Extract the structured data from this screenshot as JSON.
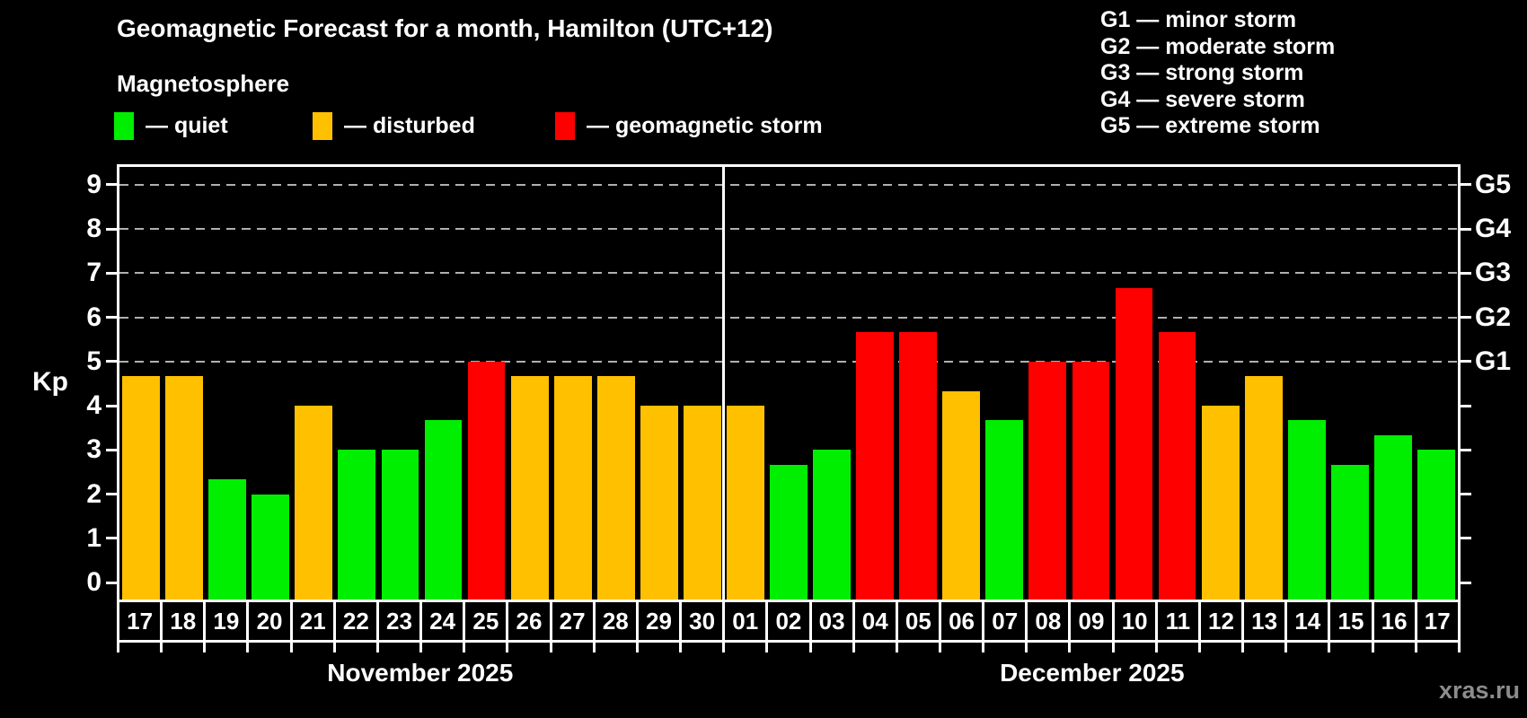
{
  "header": {
    "title": "Geomagnetic Forecast for a month, Hamilton (UTC+12)",
    "subtitle": "Magnetosphere",
    "legend": [
      {
        "status": "quiet",
        "label": "— quiet"
      },
      {
        "status": "disturbed",
        "label": "— disturbed"
      },
      {
        "status": "storm",
        "label": "— geomagnetic storm"
      }
    ],
    "storm_scale_legend": [
      "G1 — minor storm",
      "G2 — moderate storm",
      "G3 — strong storm",
      "G4 — severe storm",
      "G5 — extreme storm"
    ]
  },
  "watermark": "xras.ru",
  "colors": {
    "quiet": "#00ee00",
    "disturbed": "#ffc000",
    "storm": "#ff0000",
    "grid": "#b0b0b0",
    "axis": "#ffffff",
    "watermark": "#8c8c8c"
  },
  "chart_data": {
    "type": "bar",
    "title": "Geomagnetic Forecast for a month, Hamilton (UTC+12)",
    "subtitle": "Magnetosphere",
    "ylabel": "Kp",
    "xlabel": "",
    "ylim": [
      0,
      9
    ],
    "yticks": [
      0,
      1,
      2,
      3,
      4,
      5,
      6,
      7,
      8,
      9
    ],
    "gridlines": [
      5,
      6,
      7,
      8,
      9
    ],
    "grid": "dashed horizontal at Kp 5-9",
    "legend_position": "top",
    "right_axis": [
      {
        "value": 5,
        "label": "G1"
      },
      {
        "value": 6,
        "label": "G2"
      },
      {
        "value": 7,
        "label": "G3"
      },
      {
        "value": 8,
        "label": "G4"
      },
      {
        "value": 9,
        "label": "G5"
      }
    ],
    "months": [
      {
        "label": "November 2025",
        "days": 14
      },
      {
        "label": "December 2025",
        "days": 17
      }
    ],
    "bars": [
      {
        "month": "11",
        "day": "17",
        "value": 4.67,
        "status": "disturbed"
      },
      {
        "month": "11",
        "day": "18",
        "value": 4.67,
        "status": "disturbed"
      },
      {
        "month": "11",
        "day": "19",
        "value": 2.33,
        "status": "quiet"
      },
      {
        "month": "11",
        "day": "20",
        "value": 2.0,
        "status": "quiet"
      },
      {
        "month": "11",
        "day": "21",
        "value": 4.0,
        "status": "disturbed"
      },
      {
        "month": "11",
        "day": "22",
        "value": 3.0,
        "status": "quiet"
      },
      {
        "month": "11",
        "day": "23",
        "value": 3.0,
        "status": "quiet"
      },
      {
        "month": "11",
        "day": "24",
        "value": 3.67,
        "status": "quiet"
      },
      {
        "month": "11",
        "day": "25",
        "value": 5.0,
        "status": "storm"
      },
      {
        "month": "11",
        "day": "26",
        "value": 4.67,
        "status": "disturbed"
      },
      {
        "month": "11",
        "day": "27",
        "value": 4.67,
        "status": "disturbed"
      },
      {
        "month": "11",
        "day": "28",
        "value": 4.67,
        "status": "disturbed"
      },
      {
        "month": "11",
        "day": "29",
        "value": 4.0,
        "status": "disturbed"
      },
      {
        "month": "11",
        "day": "30",
        "value": 4.0,
        "status": "disturbed"
      },
      {
        "month": "12",
        "day": "01",
        "value": 4.0,
        "status": "disturbed"
      },
      {
        "month": "12",
        "day": "02",
        "value": 2.67,
        "status": "quiet"
      },
      {
        "month": "12",
        "day": "03",
        "value": 3.0,
        "status": "quiet"
      },
      {
        "month": "12",
        "day": "04",
        "value": 5.67,
        "status": "storm"
      },
      {
        "month": "12",
        "day": "05",
        "value": 5.67,
        "status": "storm"
      },
      {
        "month": "12",
        "day": "06",
        "value": 4.33,
        "status": "disturbed"
      },
      {
        "month": "12",
        "day": "07",
        "value": 3.67,
        "status": "quiet"
      },
      {
        "month": "12",
        "day": "08",
        "value": 5.0,
        "status": "storm"
      },
      {
        "month": "12",
        "day": "09",
        "value": 5.0,
        "status": "storm"
      },
      {
        "month": "12",
        "day": "10",
        "value": 6.67,
        "status": "storm"
      },
      {
        "month": "12",
        "day": "11",
        "value": 5.67,
        "status": "storm"
      },
      {
        "month": "12",
        "day": "12",
        "value": 4.0,
        "status": "disturbed"
      },
      {
        "month": "12",
        "day": "13",
        "value": 4.67,
        "status": "disturbed"
      },
      {
        "month": "12",
        "day": "14",
        "value": 3.67,
        "status": "quiet"
      },
      {
        "month": "12",
        "day": "15",
        "value": 2.67,
        "status": "quiet"
      },
      {
        "month": "12",
        "day": "16",
        "value": 3.33,
        "status": "quiet"
      },
      {
        "month": "12",
        "day": "17",
        "value": 3.0,
        "status": "quiet"
      }
    ]
  }
}
